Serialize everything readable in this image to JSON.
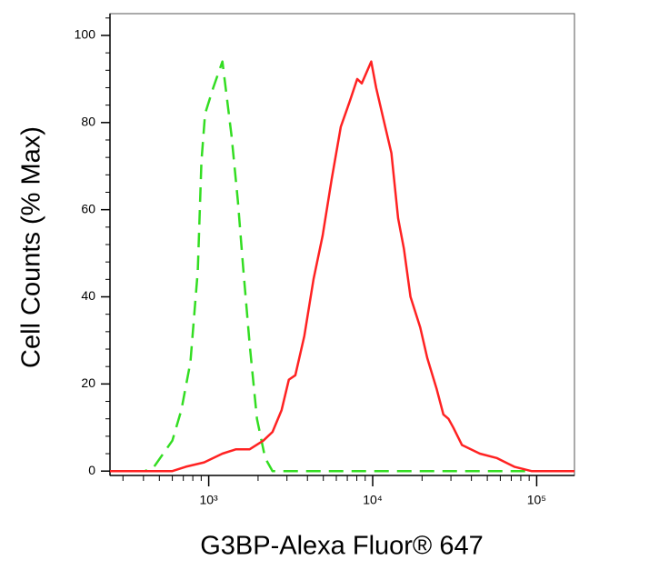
{
  "chart_data": {
    "type": "line",
    "xlabel": "G3BP-Alexa Fluor® 647",
    "ylabel": "Cell Counts (% Max)",
    "xscale": "log",
    "xlim": [
      250,
      170000
    ],
    "ylim": [
      -1,
      105
    ],
    "xticks": [
      {
        "value": 1000,
        "label": "10³"
      },
      {
        "value": 10000,
        "label": "10⁴"
      },
      {
        "value": 100000,
        "label": "10⁵"
      }
    ],
    "xminorticks": [
      300,
      400,
      500,
      600,
      700,
      800,
      900,
      2000,
      3000,
      4000,
      5000,
      6000,
      7000,
      8000,
      9000,
      20000,
      30000,
      40000,
      50000,
      60000,
      70000,
      80000,
      90000
    ],
    "yticks": [
      0,
      20,
      40,
      60,
      80,
      100
    ],
    "yminorticks": [
      4,
      8,
      12,
      16,
      24,
      28,
      32,
      36,
      44,
      48,
      52,
      56,
      64,
      68,
      72,
      76,
      84,
      88,
      92,
      96,
      104
    ],
    "series": [
      {
        "color": "#33dd22",
        "linestyle": "dashed",
        "x": [
          250,
          408,
          464,
          528,
          600,
          681,
          774,
          858,
          903,
          950,
          1066,
          1212,
          1377,
          1506,
          1627,
          1778,
          1969,
          2210,
          2448,
          170000
        ],
        "values": [
          0,
          0,
          1,
          4,
          7,
          14,
          25,
          46,
          71,
          82,
          88,
          94,
          77,
          62,
          46,
          29,
          12,
          3,
          0,
          0
        ]
      },
      {
        "color": "#ff2222",
        "linestyle": "solid",
        "x": [
          250,
          600,
          726,
          938,
          1212,
          1468,
          1778,
          2154,
          2448,
          2783,
          3083,
          3374,
          3831,
          4353,
          4946,
          5623,
          6390,
          7262,
          8050,
          8577,
          9800,
          10500,
          11600,
          13000,
          14300,
          15500,
          17000,
          19500,
          21500,
          24500,
          27000,
          29000,
          31000,
          35000,
          45000,
          57000,
          73000,
          93000,
          120000,
          170000
        ],
        "values": [
          0,
          0,
          1,
          2,
          4,
          5,
          5,
          7,
          9,
          14,
          21,
          22,
          31,
          44,
          54,
          67,
          79,
          85,
          90,
          89,
          94,
          88,
          81,
          73,
          58,
          51,
          40,
          33,
          26,
          19,
          13,
          12,
          10,
          6,
          4,
          3,
          1,
          0,
          0,
          0
        ]
      }
    ]
  }
}
